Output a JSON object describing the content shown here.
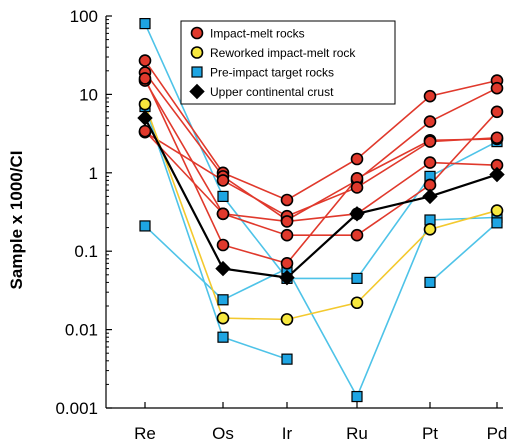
{
  "chart_data": {
    "type": "line",
    "x": [
      "Re",
      "Os",
      "Ir",
      "Ru",
      "Pt",
      "Pd"
    ],
    "ylabel": "Sample x 1000/CI",
    "xlabel": "",
    "yscale": "log",
    "ylim": [
      0.001,
      100
    ],
    "yticks": [
      {
        "value": 100,
        "label": "100"
      },
      {
        "value": 10,
        "label": "10"
      },
      {
        "value": 1,
        "label": "1"
      },
      {
        "value": 0.1,
        "label": "0.1"
      },
      {
        "value": 0.01,
        "label": "0.01"
      },
      {
        "value": 0.001,
        "label": "0.001"
      }
    ],
    "grid": false,
    "legend": "top-center",
    "groups": [
      {
        "name": "Impact-melt rocks",
        "line_color": "#e0392c",
        "marker": "circle",
        "fill": "#e0392c",
        "series": [
          [
            27,
            1.0,
            0.45,
            1.5,
            9.5,
            15
          ],
          [
            19,
            0.9,
            0.25,
            0.8,
            4.5,
            12
          ],
          [
            15,
            0.3,
            0.16,
            0.16,
            0.7,
            6
          ],
          [
            16,
            0.12,
            0.07,
            0.85,
            2.6,
            2.7
          ],
          [
            3.3,
            0.8,
            0.28,
            0.65,
            2.5,
            2.8
          ],
          [
            3.4,
            0.3,
            0.24,
            0.3,
            1.35,
            1.25
          ]
        ]
      },
      {
        "name": "Reworked impact-melt rock",
        "line_color": "#f3c92e",
        "marker": "circle",
        "fill": "#f7e83e",
        "series": [
          [
            7.5,
            0.014,
            0.0135,
            0.022,
            0.19,
            0.33
          ]
        ]
      },
      {
        "name": "Pre-impact target rocks",
        "line_color": "#4ec3e8",
        "marker": "square",
        "fill": "#1ea5e3",
        "series": [
          [
            80,
            0.5,
            0.045,
            0.045,
            0.9,
            2.5
          ],
          [
            0.21,
            0.024,
            0.06,
            0.0014,
            0.25,
            0.27
          ],
          [
            7.0,
            0.008,
            0.0042,
            null,
            0.04,
            0.23
          ]
        ]
      },
      {
        "name": "Upper continental crust",
        "line_color": "#000000",
        "marker": "diamond",
        "fill": "#000000",
        "series": [
          [
            5.0,
            0.06,
            0.046,
            0.3,
            0.5,
            0.95
          ]
        ]
      }
    ]
  }
}
